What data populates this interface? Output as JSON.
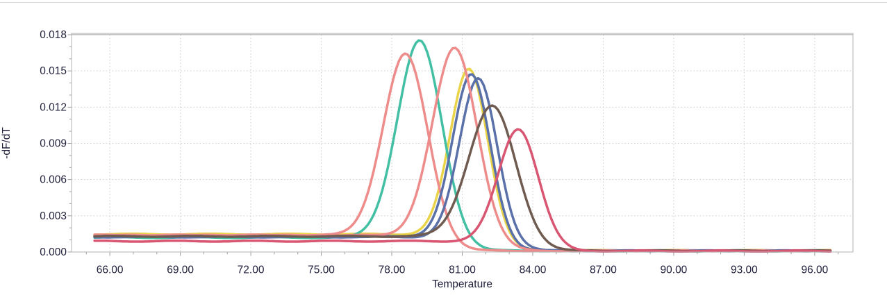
{
  "chart_data": {
    "type": "line",
    "title": "",
    "subtitle": "",
    "xlabel": "Temperature",
    "ylabel": "-dF/dT",
    "legend": "none",
    "grid": "dotted",
    "x_axis": {
      "min": 64.37,
      "max": 97.63,
      "major_tick_values": [
        66,
        69,
        72,
        75,
        78,
        81,
        84,
        87,
        90,
        93,
        96
      ],
      "major_tick_labels": [
        "66.00",
        "69.00",
        "72.00",
        "75.00",
        "78.00",
        "81.00",
        "84.00",
        "87.00",
        "90.00",
        "93.00",
        "96.00"
      ],
      "minor_tick_step": 1
    },
    "y_axis": {
      "min": 0,
      "max": 0.018,
      "major_tick_values": [
        0,
        0.003,
        0.006,
        0.009,
        0.012,
        0.015,
        0.018
      ],
      "major_tick_labels": [
        "0.000",
        "0.003",
        "0.006",
        "0.009",
        "0.012",
        "0.015",
        "0.018"
      ],
      "minor_tick_step": 0.001
    },
    "series": [
      {
        "id": "melt-curve-yellow",
        "color": "#e9d44a",
        "tm": 81.3,
        "peak": 0.0152,
        "sigma": 0.8,
        "baseline_left": 0.00148,
        "baseline_right": 0.00012,
        "t_start": 65.35,
        "t_end": 96.7
      },
      {
        "id": "melt-curve-teal",
        "color": "#43bfa3",
        "tm": 79.2,
        "peak": 0.0175,
        "sigma": 0.95,
        "baseline_left": 0.0012,
        "baseline_right": 0.0001,
        "t_start": 65.35,
        "t_end": 96.7
      },
      {
        "id": "melt-curve-salmon-a",
        "color": "#ee8c8c",
        "tm": 78.6,
        "peak": 0.0164,
        "sigma": 0.95,
        "baseline_left": 0.0014,
        "baseline_right": 0.0001,
        "t_start": 65.35,
        "t_end": 96.7
      },
      {
        "id": "melt-curve-blue-a",
        "color": "#5a70a8",
        "tm": 81.4,
        "peak": 0.0147,
        "sigma": 0.8,
        "baseline_left": 0.00128,
        "baseline_right": 0.0001,
        "t_start": 65.35,
        "t_end": 96.7
      },
      {
        "id": "melt-curve-blue-b",
        "color": "#5a70a8",
        "tm": 81.7,
        "peak": 0.0144,
        "sigma": 0.8,
        "baseline_left": 0.00125,
        "baseline_right": 0.0001,
        "t_start": 65.35,
        "t_end": 96.7
      },
      {
        "id": "melt-curve-salmon-b",
        "color": "#ee8c8c",
        "tm": 80.7,
        "peak": 0.0169,
        "sigma": 0.95,
        "baseline_left": 0.00138,
        "baseline_right": 0.0001,
        "t_start": 65.35,
        "t_end": 96.7
      },
      {
        "id": "melt-curve-brown",
        "color": "#6f5b50",
        "tm": 82.3,
        "peak": 0.0121,
        "sigma": 1.0,
        "baseline_left": 0.0013,
        "baseline_right": 0.0001,
        "t_start": 65.35,
        "t_end": 96.7
      },
      {
        "id": "melt-curve-crimson",
        "color": "#d95672",
        "tm": 83.4,
        "peak": 0.0102,
        "sigma": 0.85,
        "baseline_left": 0.0009,
        "baseline_right": 8e-05,
        "t_start": 65.35,
        "t_end": 96.7
      }
    ]
  },
  "colors": {
    "background": "#ffffff",
    "plot_border": "#b3b3b3",
    "plot_border_top": "#cfcfcf",
    "grid": "#cccccc",
    "tick": "#9b9b9b",
    "text": "#1f1f3a",
    "top_divider": "#dcdcdc"
  }
}
